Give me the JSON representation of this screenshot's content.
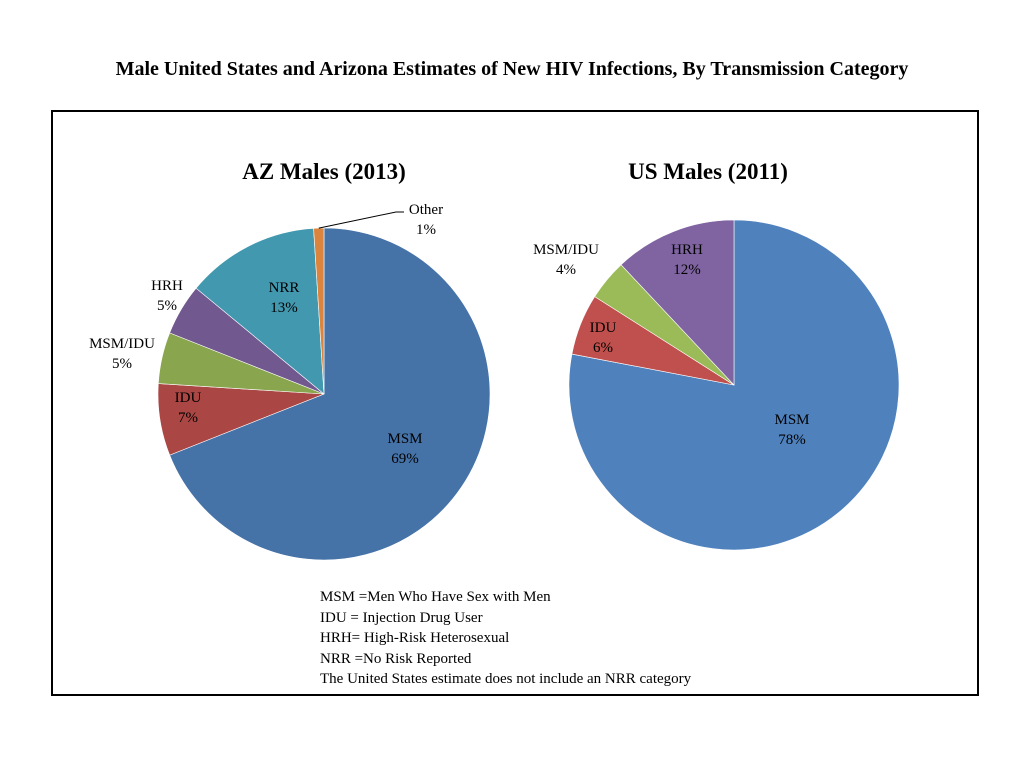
{
  "title": "Male United States and Arizona Estimates of New HIV Infections, By Transmission Category",
  "chart_data": [
    {
      "type": "pie",
      "title": "AZ Males (2013)",
      "slices": [
        {
          "label": "MSM",
          "value": 69,
          "pct": "69%",
          "color": "#4572a7"
        },
        {
          "label": "IDU",
          "value": 7,
          "pct": "7%",
          "color": "#aa4643"
        },
        {
          "label": "MSM/IDU",
          "value": 5,
          "pct": "5%",
          "color": "#89a54e"
        },
        {
          "label": "HRH",
          "value": 5,
          "pct": "5%",
          "color": "#71588f"
        },
        {
          "label": "NRR",
          "value": 13,
          "pct": "13%",
          "color": "#4198af"
        },
        {
          "label": "Other",
          "value": 1,
          "pct": "1%",
          "color": "#db843d"
        }
      ]
    },
    {
      "type": "pie",
      "title": "US Males (2011)",
      "slices": [
        {
          "label": "MSM",
          "value": 78,
          "pct": "78%",
          "color": "#4f81bd"
        },
        {
          "label": "IDU",
          "value": 6,
          "pct": "6%",
          "color": "#c0504d"
        },
        {
          "label": "MSM/IDU",
          "value": 4,
          "pct": "4%",
          "color": "#9bbb59"
        },
        {
          "label": "HRH",
          "value": 12,
          "pct": "12%",
          "color": "#8064a2"
        }
      ]
    }
  ],
  "legend": [
    "MSM =Men Who Have Sex with Men",
    "IDU = Injection Drug User",
    "HRH= High-Risk Heterosexual",
    "NRR =No Risk Reported",
    "The United States estimate does not include an NRR category"
  ]
}
